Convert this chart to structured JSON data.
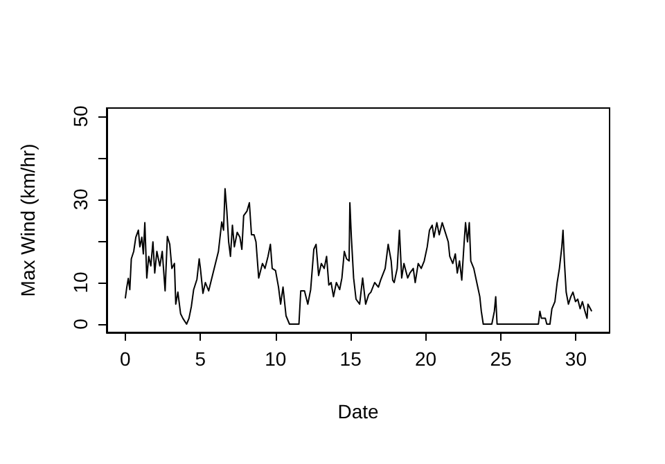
{
  "chart_data": {
    "type": "line",
    "xlabel": "Date",
    "ylabel": "Max Wind (km/hr)",
    "xlim": [
      -1.24,
      32.24
    ],
    "ylim": [
      -2,
      52
    ],
    "xticks": [
      0,
      5,
      10,
      15,
      20,
      25,
      30
    ],
    "yticks": [
      0,
      10,
      {
        "value": 20,
        "label": null
      },
      30,
      {
        "value": 40,
        "label": null
      },
      50
    ],
    "grid": false,
    "marker": "none",
    "line_style": "solid",
    "series": [
      {
        "color": "#000000",
        "x": [
          0,
          0.1,
          0.2,
          0.3,
          0.4,
          0.56,
          0.7,
          0.87,
          0.97,
          1.1,
          1.2,
          1.3,
          1.43,
          1.56,
          1.7,
          1.84,
          1.96,
          2.1,
          2.3,
          2.46,
          2.65,
          2.8,
          2.96,
          3.1,
          3.27,
          3.36,
          3.5,
          3.68,
          3.83,
          4.08,
          4.24,
          4.4,
          4.55,
          4.77,
          4.92,
          5.0,
          5.17,
          5.33,
          5.55,
          5.76,
          6.0,
          6.2,
          6.42,
          6.54,
          6.64,
          6.76,
          6.88,
          7.0,
          7.13,
          7.26,
          7.45,
          7.63,
          7.76,
          7.88,
          8.1,
          8.26,
          8.4,
          8.57,
          8.7,
          8.88,
          9.13,
          9.3,
          9.5,
          9.66,
          9.78,
          10.0,
          10.2,
          10.34,
          10.5,
          10.7,
          10.93,
          11.56,
          11.68,
          11.93,
          12.15,
          12.34,
          12.55,
          12.7,
          12.87,
          13.05,
          13.24,
          13.4,
          13.55,
          13.7,
          13.86,
          14.05,
          14.27,
          14.42,
          14.58,
          14.73,
          14.9,
          14.95,
          15.05,
          15.2,
          15.36,
          15.6,
          15.8,
          16.0,
          16.2,
          16.35,
          16.6,
          16.85,
          17.0,
          17.3,
          17.5,
          17.7,
          17.8,
          17.9,
          18.1,
          18.25,
          18.4,
          18.55,
          18.8,
          18.95,
          19.17,
          19.3,
          19.5,
          19.7,
          19.9,
          20.1,
          20.25,
          20.43,
          20.55,
          20.74,
          20.9,
          21.1,
          21.3,
          21.5,
          21.6,
          21.8,
          21.97,
          22.1,
          22.25,
          22.4,
          22.56,
          22.65,
          22.78,
          22.9,
          23.0,
          23.2,
          23.4,
          23.6,
          23.7,
          23.83,
          24.4,
          24.57,
          24.66,
          24.75,
          27.5,
          27.6,
          27.7,
          27.96,
          28.06,
          28.27,
          28.4,
          28.6,
          28.75,
          28.9,
          29.06,
          29.14,
          29.23,
          29.35,
          29.5,
          29.66,
          29.8,
          29.97,
          30.12,
          30.28,
          30.43,
          30.6,
          30.74,
          30.8,
          30.96,
          31.05
        ],
        "values": [
          6.2,
          8.9,
          11,
          8.3,
          15.7,
          17.5,
          20.9,
          22.6,
          18.6,
          20.9,
          16.9,
          24.4,
          11.1,
          16.3,
          14,
          19.8,
          12.3,
          17.5,
          14,
          17.5,
          8,
          21.1,
          19.2,
          13.4,
          14.6,
          4.8,
          7.7,
          2.5,
          1.4,
          0,
          1.4,
          4.3,
          8.3,
          10.8,
          15.7,
          13.4,
          7.4,
          10,
          8,
          11.1,
          14.6,
          17.5,
          24.6,
          22.6,
          32.6,
          27.2,
          19.8,
          16.3,
          23.8,
          18.6,
          22.1,
          20.9,
          18,
          26.1,
          27.2,
          29.2,
          21.5,
          21.5,
          19.8,
          11.1,
          14.6,
          13.4,
          16.3,
          19.2,
          13.4,
          12.9,
          8.9,
          4.8,
          8.9,
          2,
          0,
          0,
          8,
          8,
          4.8,
          8.3,
          18,
          19.2,
          11.7,
          14.6,
          13.4,
          16.3,
          9.4,
          10,
          6.6,
          10,
          8.3,
          11.1,
          17.5,
          15.7,
          15.2,
          29.2,
          20.9,
          11.1,
          6,
          4.8,
          11.1,
          4.8,
          7.1,
          7.7,
          10,
          8.9,
          10.6,
          13.4,
          19.2,
          15.2,
          10.6,
          10,
          13.4,
          22.6,
          11.1,
          14.6,
          11.1,
          12.3,
          13.4,
          10,
          14.6,
          13.4,
          15.2,
          18.6,
          22.6,
          23.8,
          20.9,
          24.4,
          21.5,
          24.4,
          22.1,
          19.8,
          16.3,
          14.6,
          16.9,
          12.3,
          15.2,
          10.6,
          19.8,
          24.4,
          19.8,
          24.4,
          15.2,
          13.4,
          10,
          6.6,
          3.1,
          0,
          0,
          3.1,
          6.6,
          0,
          0,
          3.1,
          1.4,
          1.4,
          0,
          0,
          3.7,
          5.4,
          10,
          13.4,
          18.6,
          22.6,
          15.2,
          7.7,
          4.8,
          6.6,
          7.7,
          5.4,
          6,
          3.7,
          5.4,
          3.1,
          1.4,
          4.8,
          3.7,
          3.1
        ]
      }
    ]
  }
}
